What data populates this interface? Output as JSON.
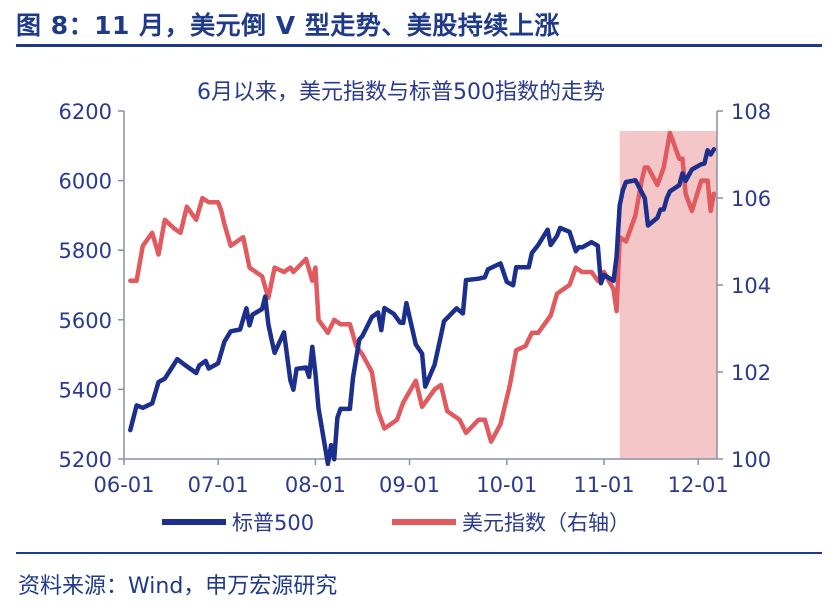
{
  "figure": {
    "title": "图 8：11 月，美元倒 V 型走势、美股持续上涨",
    "source": "资料来源：Wind，申万宏源研究"
  },
  "colors": {
    "sp500": "#1c2f8c",
    "usd": "#e05a5f",
    "shade": "#f4c6c7",
    "axis": "#1f3a8a",
    "text": "#1f3a8a"
  },
  "chart_data": {
    "type": "line",
    "title": "6月以来，美元指数与标普500指数的走势",
    "x_ticks": [
      "06-01",
      "07-01",
      "08-01",
      "09-01",
      "10-01",
      "11-01",
      "12-01"
    ],
    "xlim": [
      "06-01",
      "12-07"
    ],
    "y_left": {
      "ticks": [
        "5200",
        "5400",
        "5600",
        "5800",
        "6000",
        "6200"
      ],
      "lim": [
        5200,
        6200
      ]
    },
    "y_right": {
      "ticks": [
        "100",
        "102",
        "104",
        "106",
        "108"
      ],
      "lim": [
        100,
        108
      ]
    },
    "shaded_period": [
      "11-06",
      "12-07"
    ],
    "legend_position": "bottom",
    "series": [
      {
        "name": "标普500",
        "axis": "left",
        "points": [
          [
            "06-03",
            5283
          ],
          [
            "06-05",
            5354
          ],
          [
            "06-07",
            5347
          ],
          [
            "06-10",
            5360
          ],
          [
            "06-12",
            5421
          ],
          [
            "06-14",
            5431
          ],
          [
            "06-17",
            5473
          ],
          [
            "06-18",
            5487
          ],
          [
            "06-20",
            5473
          ],
          [
            "06-24",
            5447
          ],
          [
            "06-25",
            5469
          ],
          [
            "06-27",
            5482
          ],
          [
            "06-28",
            5460
          ],
          [
            "07-01",
            5475
          ],
          [
            "07-03",
            5537
          ],
          [
            "07-05",
            5567
          ],
          [
            "07-08",
            5572
          ],
          [
            "07-10",
            5633
          ],
          [
            "07-11",
            5584
          ],
          [
            "07-12",
            5615
          ],
          [
            "07-15",
            5631
          ],
          [
            "07-16",
            5667
          ],
          [
            "07-17",
            5588
          ],
          [
            "07-18",
            5544
          ],
          [
            "07-19",
            5505
          ],
          [
            "07-22",
            5564
          ],
          [
            "07-24",
            5427
          ],
          [
            "07-25",
            5399
          ],
          [
            "07-26",
            5459
          ],
          [
            "07-29",
            5463
          ],
          [
            "07-30",
            5436
          ],
          [
            "07-31",
            5522
          ],
          [
            "08-01",
            5446
          ],
          [
            "08-02",
            5346
          ],
          [
            "08-05",
            5186
          ],
          [
            "08-06",
            5240
          ],
          [
            "08-07",
            5199
          ],
          [
            "08-08",
            5319
          ],
          [
            "08-09",
            5344
          ],
          [
            "08-12",
            5344
          ],
          [
            "08-13",
            5434
          ],
          [
            "08-15",
            5543
          ],
          [
            "08-16",
            5554
          ],
          [
            "08-19",
            5608
          ],
          [
            "08-21",
            5621
          ],
          [
            "08-22",
            5570
          ],
          [
            "08-23",
            5634
          ],
          [
            "08-26",
            5617
          ],
          [
            "08-28",
            5592
          ],
          [
            "08-29",
            5591
          ],
          [
            "08-30",
            5648
          ],
          [
            "09-03",
            5529
          ],
          [
            "09-05",
            5503
          ],
          [
            "09-06",
            5408
          ],
          [
            "09-09",
            5471
          ],
          [
            "09-11",
            5554
          ],
          [
            "09-12",
            5596
          ],
          [
            "09-16",
            5633
          ],
          [
            "09-18",
            5618
          ],
          [
            "09-19",
            5714
          ],
          [
            "09-23",
            5718
          ],
          [
            "09-25",
            5722
          ],
          [
            "09-26",
            5745
          ],
          [
            "09-30",
            5762
          ],
          [
            "10-01",
            5709
          ],
          [
            "10-03",
            5699
          ],
          [
            "10-04",
            5751
          ],
          [
            "10-08",
            5751
          ],
          [
            "10-09",
            5792
          ],
          [
            "10-11",
            5815
          ],
          [
            "10-14",
            5859
          ],
          [
            "10-15",
            5815
          ],
          [
            "10-17",
            5841
          ],
          [
            "10-18",
            5864
          ],
          [
            "10-21",
            5853
          ],
          [
            "10-23",
            5797
          ],
          [
            "10-24",
            5809
          ],
          [
            "10-25",
            5808
          ],
          [
            "10-28",
            5823
          ],
          [
            "10-30",
            5813
          ],
          [
            "10-31",
            5705
          ],
          [
            "11-01",
            5729
          ],
          [
            "11-04",
            5712
          ],
          [
            "11-05",
            5782
          ],
          [
            "11-06",
            5929
          ],
          [
            "11-07",
            5973
          ],
          [
            "11-08",
            5996
          ],
          [
            "11-11",
            6001
          ],
          [
            "11-12",
            5984
          ],
          [
            "11-14",
            5949
          ],
          [
            "11-15",
            5871
          ],
          [
            "11-18",
            5893
          ],
          [
            "11-19",
            5917
          ],
          [
            "11-20",
            5917
          ],
          [
            "11-21",
            5949
          ],
          [
            "11-22",
            5969
          ],
          [
            "11-25",
            5987
          ],
          [
            "11-26",
            6021
          ],
          [
            "11-27",
            5999
          ],
          [
            "11-29",
            6032
          ],
          [
            "12-02",
            6047
          ],
          [
            "12-03",
            6049
          ],
          [
            "12-04",
            6087
          ],
          [
            "12-05",
            6075
          ],
          [
            "12-06",
            6090
          ]
        ]
      },
      {
        "name": "美元指数（右轴）",
        "axis": "right",
        "points": [
          [
            "06-03",
            104.1
          ],
          [
            "06-05",
            104.1
          ],
          [
            "06-07",
            104.9
          ],
          [
            "06-10",
            105.2
          ],
          [
            "06-12",
            104.7
          ],
          [
            "06-14",
            105.5
          ],
          [
            "06-17",
            105.3
          ],
          [
            "06-19",
            105.2
          ],
          [
            "06-21",
            105.8
          ],
          [
            "06-24",
            105.5
          ],
          [
            "06-26",
            106.0
          ],
          [
            "06-28",
            105.9
          ],
          [
            "07-01",
            105.9
          ],
          [
            "07-02",
            105.7
          ],
          [
            "07-03",
            105.4
          ],
          [
            "07-05",
            104.9
          ],
          [
            "07-09",
            105.1
          ],
          [
            "07-11",
            104.4
          ],
          [
            "07-15",
            104.2
          ],
          [
            "07-17",
            103.7
          ],
          [
            "07-19",
            104.4
          ],
          [
            "07-22",
            104.3
          ],
          [
            "07-24",
            104.4
          ],
          [
            "07-25",
            104.3
          ],
          [
            "07-29",
            104.6
          ],
          [
            "07-31",
            104.1
          ],
          [
            "08-01",
            104.4
          ],
          [
            "08-02",
            103.2
          ],
          [
            "08-05",
            102.9
          ],
          [
            "08-07",
            103.2
          ],
          [
            "08-09",
            103.1
          ],
          [
            "08-12",
            103.1
          ],
          [
            "08-14",
            102.6
          ],
          [
            "08-16",
            102.4
          ],
          [
            "08-19",
            102.0
          ],
          [
            "08-21",
            101.1
          ],
          [
            "08-23",
            100.7
          ],
          [
            "08-27",
            100.9
          ],
          [
            "08-29",
            101.3
          ],
          [
            "09-03",
            101.8
          ],
          [
            "09-05",
            101.2
          ],
          [
            "09-09",
            101.6
          ],
          [
            "09-11",
            101.7
          ],
          [
            "09-13",
            101.1
          ],
          [
            "09-17",
            100.9
          ],
          [
            "09-19",
            100.6
          ],
          [
            "09-23",
            100.9
          ],
          [
            "09-25",
            100.9
          ],
          [
            "09-27",
            100.4
          ],
          [
            "09-30",
            100.8
          ],
          [
            "10-02",
            101.7
          ],
          [
            "10-04",
            102.5
          ],
          [
            "10-07",
            102.6
          ],
          [
            "10-09",
            102.9
          ],
          [
            "10-11",
            102.9
          ],
          [
            "10-15",
            103.3
          ],
          [
            "10-17",
            103.8
          ],
          [
            "10-21",
            104.0
          ],
          [
            "10-23",
            104.4
          ],
          [
            "10-25",
            104.3
          ],
          [
            "10-28",
            104.3
          ],
          [
            "10-30",
            104.1
          ],
          [
            "11-01",
            104.3
          ],
          [
            "11-04",
            103.9
          ],
          [
            "11-05",
            103.4
          ],
          [
            "11-06",
            105.1
          ],
          [
            "11-08",
            105.0
          ],
          [
            "11-11",
            105.6
          ],
          [
            "11-13",
            106.4
          ],
          [
            "11-14",
            106.7
          ],
          [
            "11-15",
            106.7
          ],
          [
            "11-18",
            106.3
          ],
          [
            "11-20",
            106.7
          ],
          [
            "11-22",
            107.5
          ],
          [
            "11-25",
            106.9
          ],
          [
            "11-26",
            106.9
          ],
          [
            "11-27",
            106.1
          ],
          [
            "11-29",
            105.7
          ],
          [
            "12-02",
            106.4
          ],
          [
            "12-04",
            106.4
          ],
          [
            "12-05",
            105.7
          ],
          [
            "12-06",
            106.1
          ]
        ]
      }
    ]
  }
}
